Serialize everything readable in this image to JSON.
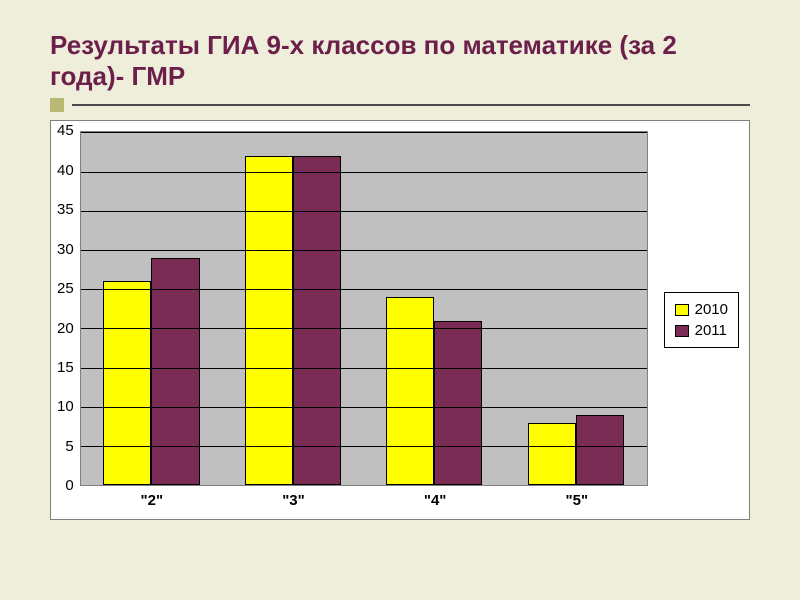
{
  "slide": {
    "background_color": "#eeeeda",
    "title": "Результаты ГИА 9-х классов по математике (за 2 года)- ГМР",
    "title_color": "#6b1f4a",
    "title_fontsize": 26,
    "rule_square_color": "#b8b872",
    "rule_line_color": "#4a4a4a"
  },
  "chart": {
    "type": "bar",
    "categories": [
      "\"2\"",
      "\"3\"",
      "\"4\"",
      "\"5\""
    ],
    "series": [
      {
        "name": "2010",
        "color": "#ffff00",
        "values": [
          26,
          42,
          24,
          8
        ]
      },
      {
        "name": "2011",
        "color": "#7a2c55",
        "values": [
          29,
          42,
          21,
          9
        ]
      }
    ],
    "ylim": [
      0,
      45
    ],
    "ytick_step": 5,
    "yticks": [
      45,
      40,
      35,
      30,
      25,
      20,
      15,
      10,
      5,
      0
    ],
    "plot_background": "#c0c0c0",
    "grid_color": "#000000",
    "chart_border_color": "#808080",
    "outer_background": "#ffffff",
    "bar_border_color": "#000000",
    "bar_width": 0.34,
    "tick_fontsize": 15,
    "xlabel_fontweight": "bold",
    "legend_position": "right",
    "legend_border_color": "#000000"
  }
}
